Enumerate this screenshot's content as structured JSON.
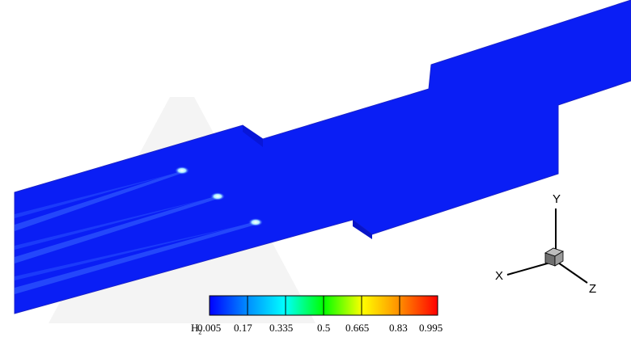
{
  "legend": {
    "variable": "H",
    "variable_subscript": "2",
    "ticks": [
      "0.005",
      "0.17",
      "0.335",
      "0.5",
      "0.665",
      "0.83",
      "0.995"
    ],
    "colors": [
      "#0000ff",
      "#00aaff",
      "#00ffff",
      "#00ff00",
      "#ffff00",
      "#ff8800",
      "#ff0000"
    ]
  },
  "axes": {
    "x": "X",
    "y": "Y",
    "z": "Z"
  },
  "colors": {
    "field_base": "#0a14f2",
    "jet_core": "#ffffff",
    "jet_trail": "#66aaff",
    "cube": "#808080"
  }
}
